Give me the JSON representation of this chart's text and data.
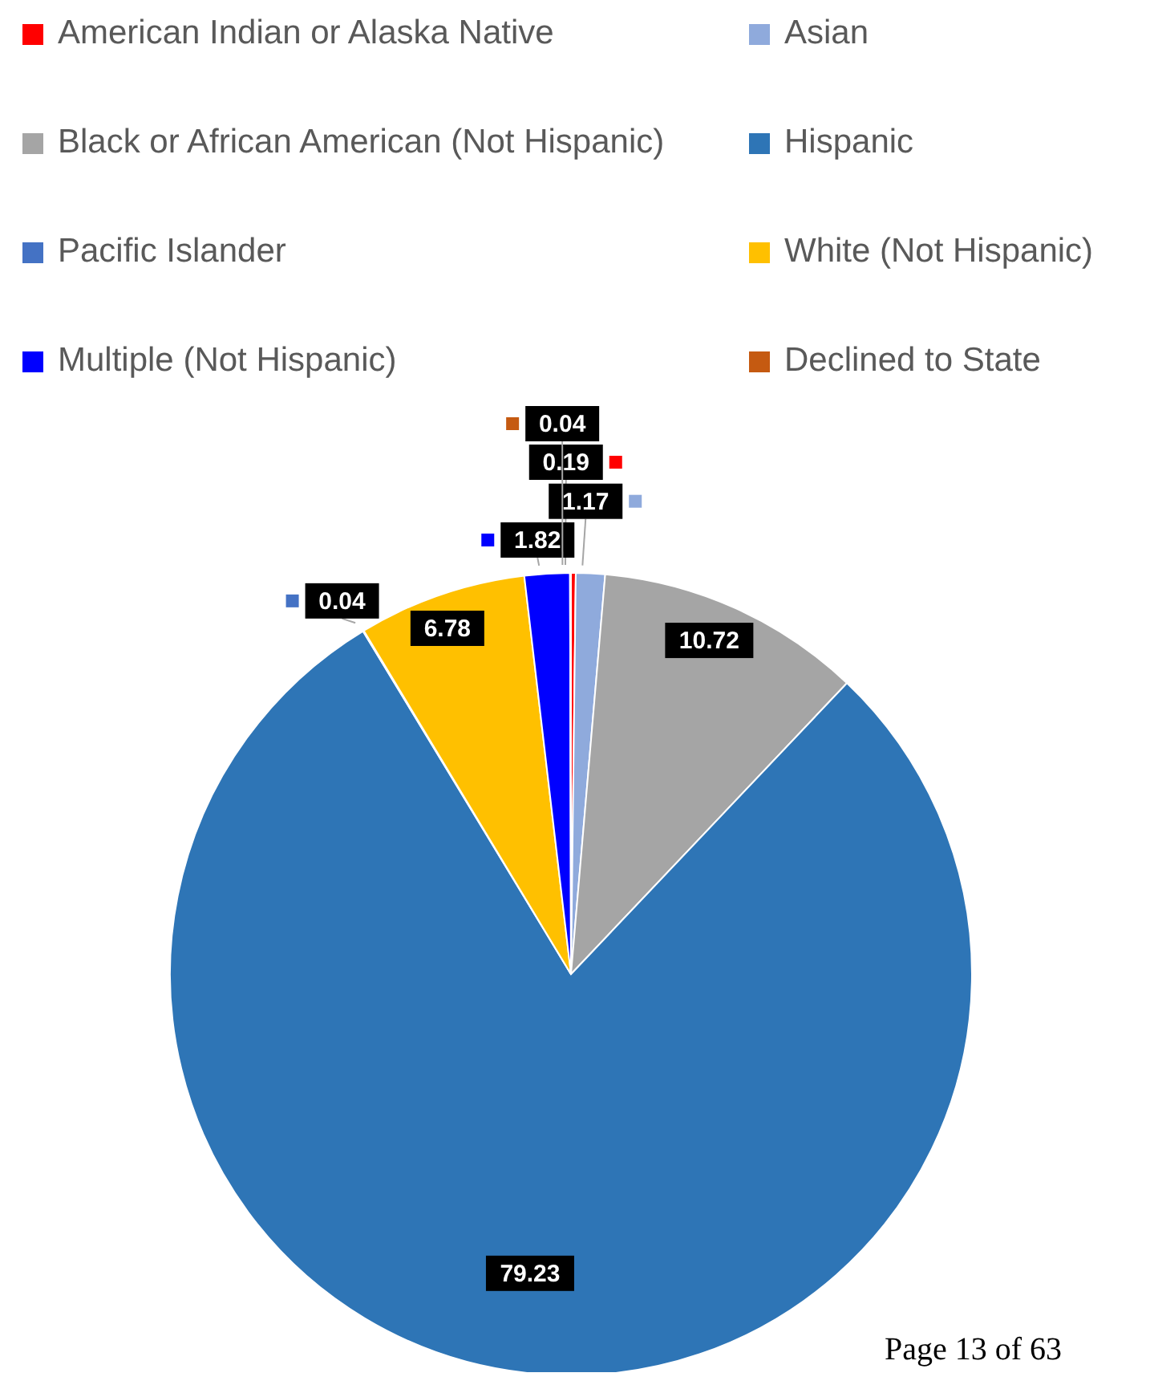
{
  "chart_data": {
    "type": "pie",
    "categories": [
      "American Indian or Alaska Native",
      "Asian",
      "Black or African American (Not Hispanic)",
      "Hispanic",
      "Pacific Islander",
      "White (Not Hispanic)",
      "Multiple (Not Hispanic)",
      "Declined to State"
    ],
    "values": [
      0.19,
      1.17,
      10.72,
      79.23,
      0.04,
      6.78,
      1.82,
      0.04
    ],
    "colors": [
      "#ff0000",
      "#8faadc",
      "#a5a5a5",
      "#2e75b6",
      "#4472c4",
      "#ffc000",
      "#0000ff",
      "#c55a11"
    ],
    "data_labels": true,
    "legend": "top",
    "annotations": [
      "Page 13 of 63"
    ]
  }
}
